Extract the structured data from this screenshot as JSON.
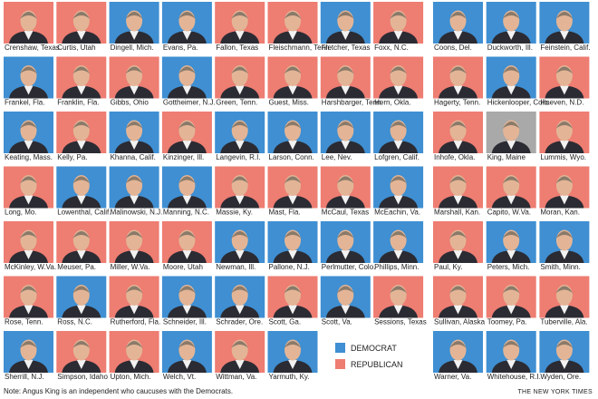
{
  "left_grid": [
    {
      "name": "Crenshaw, Texas",
      "color": "#ee7d72"
    },
    {
      "name": "Curtis, Utah",
      "color": "#ee7d72"
    },
    {
      "name": "Dingell, Mich.",
      "color": "#3f8fd2"
    },
    {
      "name": "Evans, Pa.",
      "color": "#3f8fd2"
    },
    {
      "name": "Fallon, Texas",
      "color": "#ee7d72"
    },
    {
      "name": "Fleischmann, Tenn.",
      "color": "#ee7d72"
    },
    {
      "name": "Fletcher, Texas",
      "color": "#3f8fd2"
    },
    {
      "name": "Foxx, N.C.",
      "color": "#ee7d72"
    },
    {
      "name": "Frankel, Fla.",
      "color": "#3f8fd2"
    },
    {
      "name": "Franklin, Fla.",
      "color": "#ee7d72"
    },
    {
      "name": "Gibbs, Ohio",
      "color": "#ee7d72"
    },
    {
      "name": "Gottheimer, N.J.",
      "color": "#3f8fd2"
    },
    {
      "name": "Green, Tenn.",
      "color": "#ee7d72"
    },
    {
      "name": "Guest, Miss.",
      "color": "#ee7d72"
    },
    {
      "name": "Harshbarger, Tenn.",
      "color": "#ee7d72"
    },
    {
      "name": "Hern, Okla.",
      "color": "#ee7d72"
    },
    {
      "name": "Keating, Mass.",
      "color": "#3f8fd2"
    },
    {
      "name": "Kelly, Pa.",
      "color": "#ee7d72"
    },
    {
      "name": "Khanna, Calif.",
      "color": "#3f8fd2"
    },
    {
      "name": "Kinzinger, Ill.",
      "color": "#ee7d72"
    },
    {
      "name": "Langevin, R.I.",
      "color": "#3f8fd2"
    },
    {
      "name": "Larson, Conn.",
      "color": "#3f8fd2"
    },
    {
      "name": "Lee, Nev.",
      "color": "#3f8fd2"
    },
    {
      "name": "Lofgren, Calif.",
      "color": "#3f8fd2"
    },
    {
      "name": "Long, Mo.",
      "color": "#ee7d72"
    },
    {
      "name": "Lowenthal, Calif.",
      "color": "#3f8fd2"
    },
    {
      "name": "Malinowski, N.J.",
      "color": "#3f8fd2"
    },
    {
      "name": "Manning, N.C.",
      "color": "#3f8fd2"
    },
    {
      "name": "Massie, Ky.",
      "color": "#ee7d72"
    },
    {
      "name": "Mast, Fla.",
      "color": "#ee7d72"
    },
    {
      "name": "McCaul, Texas",
      "color": "#ee7d72"
    },
    {
      "name": "McEachin, Va.",
      "color": "#3f8fd2"
    },
    {
      "name": "McKinley, W.Va.",
      "color": "#ee7d72"
    },
    {
      "name": "Meuser, Pa.",
      "color": "#ee7d72"
    },
    {
      "name": "Miller, W.Va.",
      "color": "#ee7d72"
    },
    {
      "name": "Moore, Utah",
      "color": "#ee7d72"
    },
    {
      "name": "Newman, Ill.",
      "color": "#3f8fd2"
    },
    {
      "name": "Pallone, N.J.",
      "color": "#3f8fd2"
    },
    {
      "name": "Perlmutter, Colo.",
      "color": "#3f8fd2"
    },
    {
      "name": "Phillips, Minn.",
      "color": "#3f8fd2"
    },
    {
      "name": "Rose, Tenn.",
      "color": "#ee7d72"
    },
    {
      "name": "Ross, N.C.",
      "color": "#3f8fd2"
    },
    {
      "name": "Rutherford, Fla.",
      "color": "#ee7d72"
    },
    {
      "name": "Schneider, Ill.",
      "color": "#3f8fd2"
    },
    {
      "name": "Schrader, Ore.",
      "color": "#3f8fd2"
    },
    {
      "name": "Scott, Ga.",
      "color": "#ee7d72"
    },
    {
      "name": "Scott, Va.",
      "color": "#3f8fd2"
    },
    {
      "name": "Sessions, Texas",
      "color": "#ee7d72"
    },
    {
      "name": "Sherrill, N.J.",
      "color": "#3f8fd2"
    },
    {
      "name": "Simpson, Idaho",
      "color": "#ee7d72"
    },
    {
      "name": "Upton, Mich.",
      "color": "#ee7d72"
    },
    {
      "name": "Welch, Vt.",
      "color": "#3f8fd2"
    },
    {
      "name": "Wittman, Va.",
      "color": "#ee7d72"
    },
    {
      "name": "Yarmuth, Ky.",
      "color": "#3f8fd2"
    }
  ],
  "right_grid": [
    {
      "name": "Coons, Del.",
      "color": "#3f8fd2"
    },
    {
      "name": "Duckworth, Ill.",
      "color": "#3f8fd2"
    },
    {
      "name": "Feinstein, Calif.",
      "color": "#3f8fd2"
    },
    {
      "name": "Hagerty, Tenn.",
      "color": "#ee7d72"
    },
    {
      "name": "Hickenlooper, Colo.",
      "color": "#3f8fd2"
    },
    {
      "name": "Hoeven, N.D.",
      "color": "#ee7d72"
    },
    {
      "name": "Inhofe, Okla.",
      "color": "#ee7d72"
    },
    {
      "name": "King, Maine",
      "color": "#a9a9a9"
    },
    {
      "name": "Lummis, Wyo.",
      "color": "#ee7d72"
    },
    {
      "name": "Marshall, Kan.",
      "color": "#ee7d72"
    },
    {
      "name": "Capito, W.Va.",
      "color": "#ee7d72"
    },
    {
      "name": "Moran, Kan.",
      "color": "#ee7d72"
    },
    {
      "name": "Paul, Ky.",
      "color": "#ee7d72"
    },
    {
      "name": "Peters, Mich.",
      "color": "#3f8fd2"
    },
    {
      "name": "Smith, Minn.",
      "color": "#3f8fd2"
    },
    {
      "name": "Sullivan, Alaska",
      "color": "#ee7d72"
    },
    {
      "name": "Toomey, Pa.",
      "color": "#ee7d72"
    },
    {
      "name": "Tuberville, Ala.",
      "color": "#ee7d72"
    },
    {
      "name": "Warner, Va.",
      "color": "#3f8fd2"
    },
    {
      "name": "Whitehouse, R.I.",
      "color": "#3f8fd2"
    },
    {
      "name": "Wyden, Ore.",
      "color": "#3f8fd2"
    }
  ],
  "legend": [
    {
      "label": "DEMOCRAT",
      "color": "#3f8fd2"
    },
    {
      "label": "REPUBLICAN",
      "color": "#ee7d72"
    }
  ],
  "note": "Note: Angus King is an independent who caucuses with the Democrats.",
  "credit": "THE NEW YORK TIMES"
}
